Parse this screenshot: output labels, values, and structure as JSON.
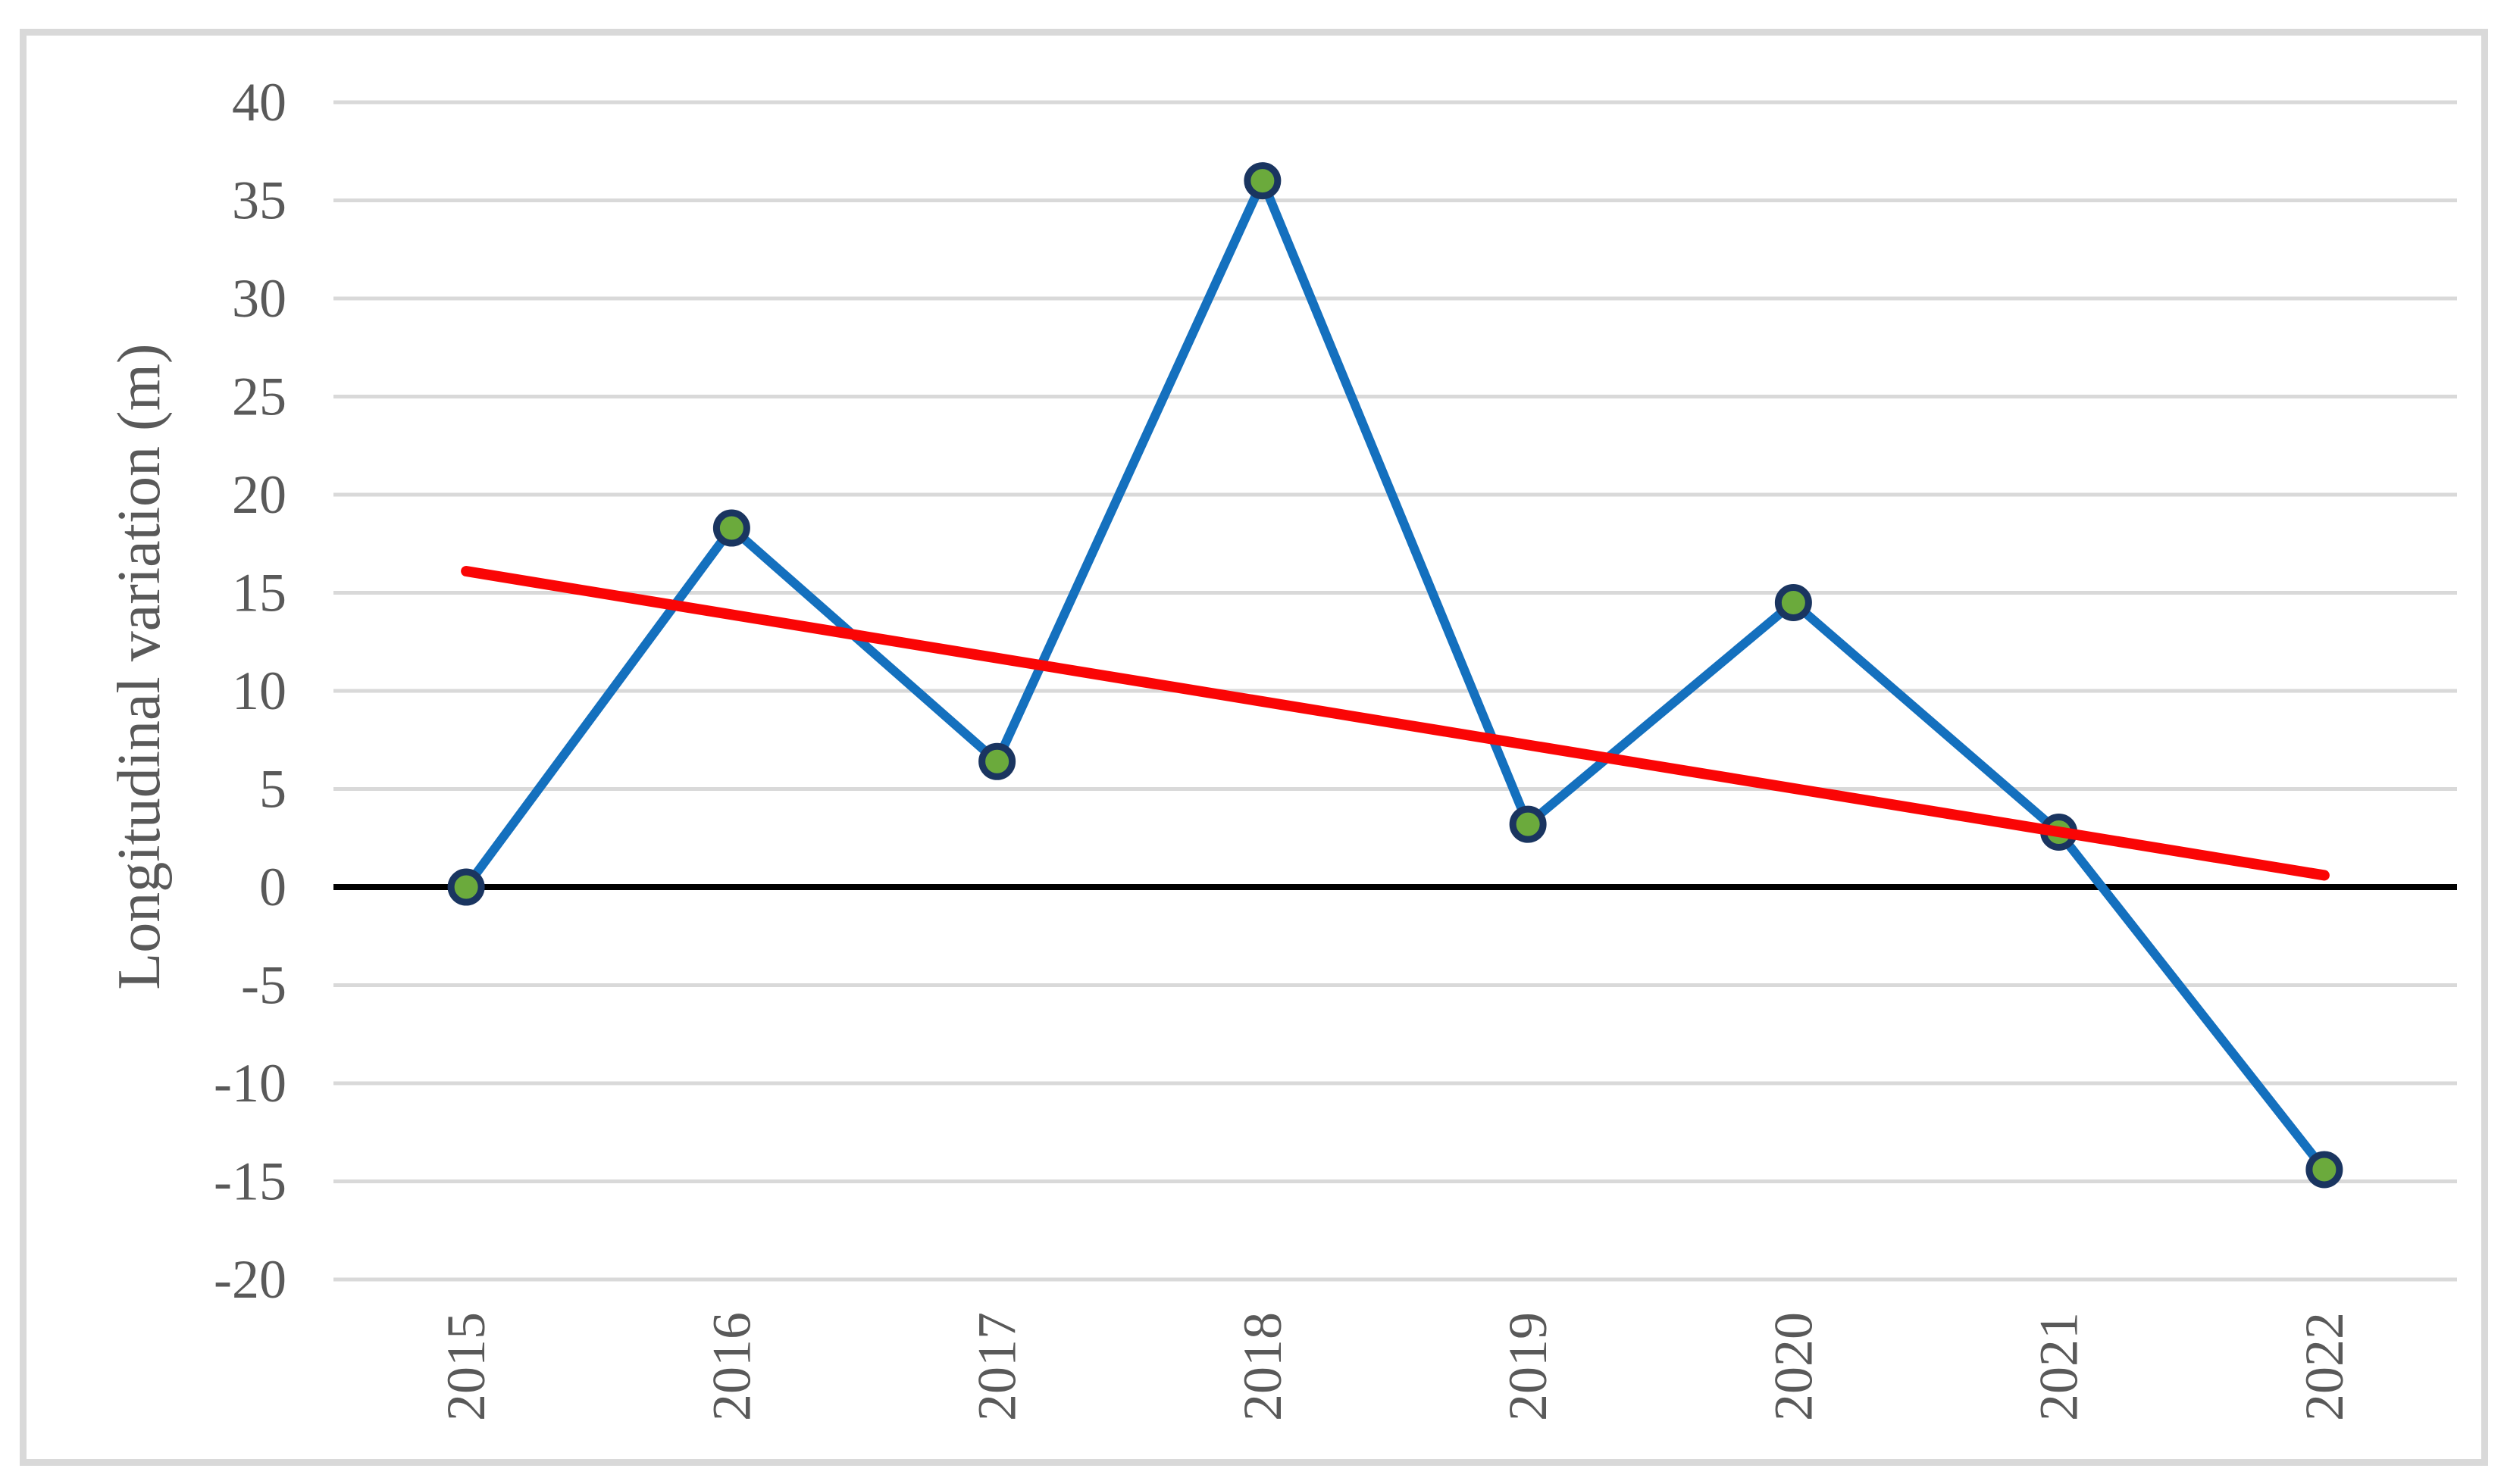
{
  "chart_data": {
    "type": "line",
    "title": "",
    "categories": [
      "2015",
      "2016",
      "2017",
      "2018",
      "2019",
      "2020",
      "2021",
      "2022"
    ],
    "series": [
      {
        "name": "Longitudinal variation",
        "values": [
          0,
          18.3,
          6.4,
          36,
          3.2,
          14.5,
          2.8,
          -14.4
        ],
        "line_color": "#1470BE",
        "marker_fill": "#6BAA3C",
        "marker_border": "#1A3560"
      },
      {
        "name": "Linear trendline",
        "type": "linear_trend",
        "endpoints": [
          16.1,
          0.6
        ],
        "color": "#FA0505"
      }
    ],
    "xlabel": "",
    "ylabel": "Longitudinal variation (m)",
    "ylim": [
      -20,
      40
    ],
    "ytick_step": 5,
    "yticks": [
      40,
      35,
      30,
      25,
      20,
      15,
      10,
      5,
      0,
      -5,
      -10,
      -15,
      -20
    ],
    "grid": "horizontal",
    "gridline_color": "#D9D9D9",
    "zero_line_color": "#000000",
    "tick_label_color": "#595959",
    "frame_border_color": "#D9D9D9",
    "background_color": "#FFFFFF",
    "legend": "none"
  }
}
